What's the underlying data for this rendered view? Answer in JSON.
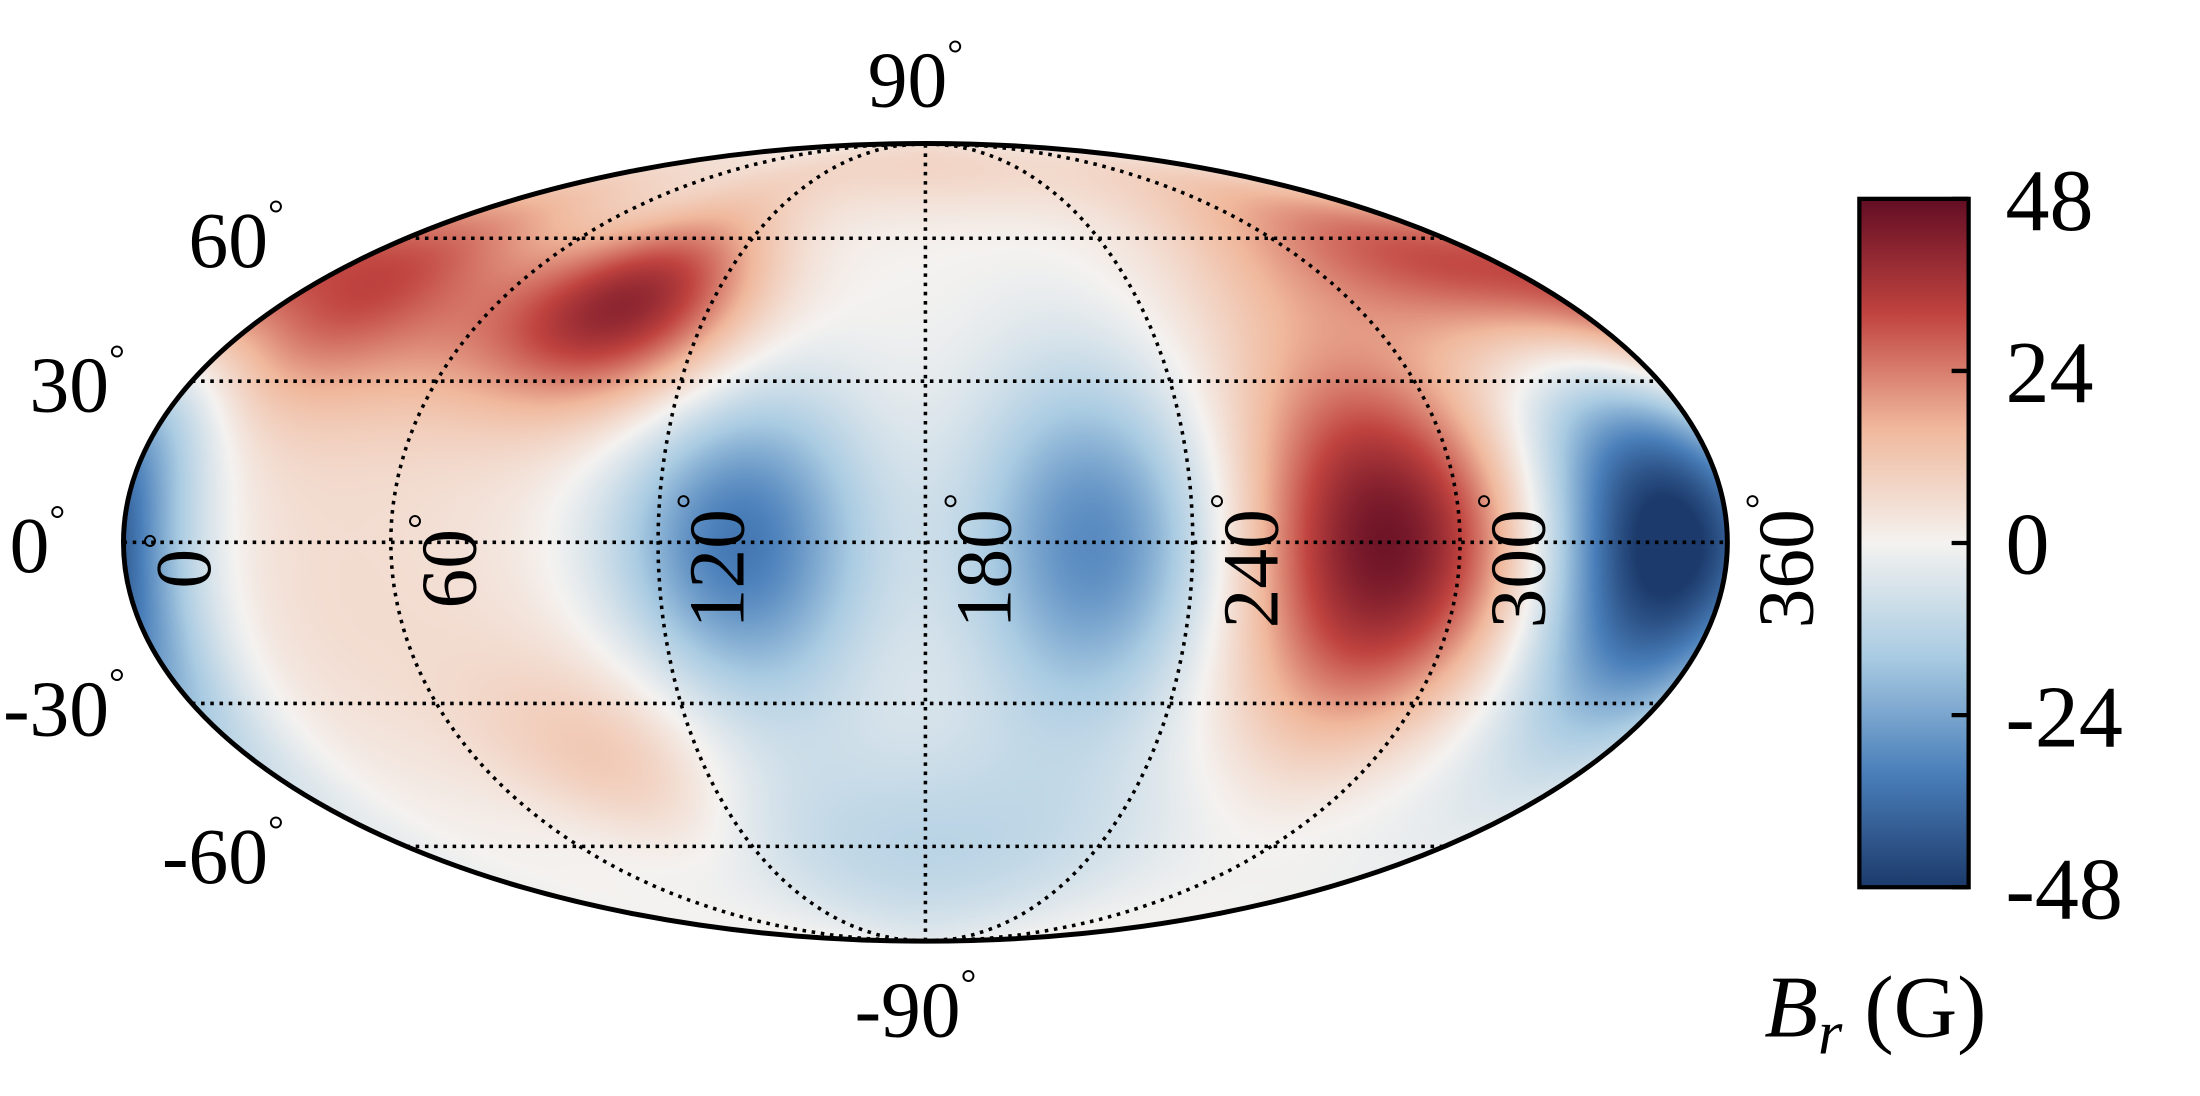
{
  "chart_data": {
    "type": "heatmap",
    "projection": "mollweide",
    "grid": true,
    "grid_style": "dotted",
    "latitude_ticks": [
      {
        "value": 90,
        "label": "90"
      },
      {
        "value": 60,
        "label": "60"
      },
      {
        "value": 30,
        "label": "30"
      },
      {
        "value": 0,
        "label": "0"
      },
      {
        "value": -30,
        "label": "-30"
      },
      {
        "value": -60,
        "label": "-60"
      },
      {
        "value": -90,
        "label": "-90"
      }
    ],
    "longitude_ticks": [
      {
        "value": 0,
        "label": "0"
      },
      {
        "value": 60,
        "label": "60"
      },
      {
        "value": 120,
        "label": "120"
      },
      {
        "value": 180,
        "label": "180"
      },
      {
        "value": 240,
        "label": "240"
      },
      {
        "value": 300,
        "label": "300"
      },
      {
        "value": 360,
        "label": "360"
      }
    ],
    "degree_symbol": "°",
    "colormap": "RdBu_r",
    "colormap_colors": [
      "#1c3a6b",
      "#4a7fba",
      "#a9cbe2",
      "#f4f2f0",
      "#f0b89c",
      "#c0433f",
      "#620d24"
    ],
    "clim": [
      -48,
      48
    ],
    "colorbar": {
      "ticks": [
        48,
        24,
        0,
        -24,
        -48
      ],
      "tick_labels": [
        "48",
        "24",
        "0",
        "-24",
        "-48"
      ],
      "label_symbol": "B",
      "label_subscript": "r",
      "label_unit": " (G)",
      "placement": "right"
    },
    "features": [
      {
        "lon": 283,
        "lat": 0,
        "value": 46
      },
      {
        "lon": 342,
        "lat": 0,
        "value": -46
      },
      {
        "lon": 138,
        "lat": 0,
        "value": -34
      },
      {
        "lon": 218,
        "lat": 0,
        "value": -30
      },
      {
        "lon": 98,
        "lat": 45,
        "value": 38
      },
      {
        "lon": 98,
        "lat": -42,
        "value": 12
      },
      {
        "lon": 0,
        "lat": 0,
        "value": -16
      },
      {
        "lon": 330,
        "lat": 55,
        "value": 24
      },
      {
        "lon": 20,
        "lat": 45,
        "value": 24
      },
      {
        "lon": 180,
        "lat": -60,
        "value": -12
      },
      {
        "lon": 180,
        "lat": 80,
        "value": 8
      },
      {
        "lon": 50,
        "lat": -10,
        "value": 6
      }
    ]
  }
}
